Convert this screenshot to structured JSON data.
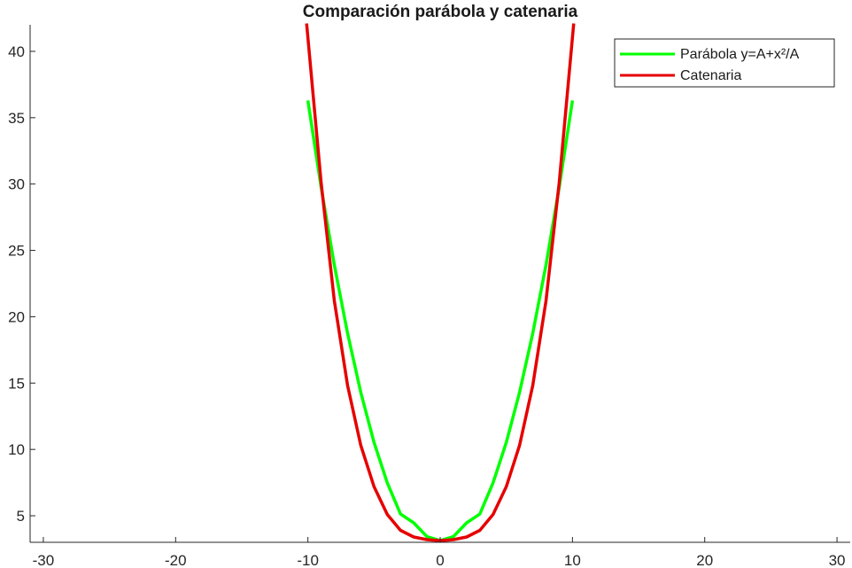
{
  "chart_data": {
    "type": "line",
    "title": "Comparación parábola y catenaria",
    "xlabel": "",
    "ylabel": "",
    "xlim": [
      -31,
      31
    ],
    "ylim": [
      3,
      42
    ],
    "xticks": [
      -30,
      -20,
      -10,
      0,
      10,
      20,
      30
    ],
    "yticks": [
      5,
      10,
      15,
      20,
      25,
      30,
      35,
      40
    ],
    "xticklabels": [
      "-30",
      "-20",
      "-10",
      "0",
      "10",
      "20",
      "30"
    ],
    "yticklabels": [
      "5",
      "10",
      "15",
      "20",
      "25",
      "30",
      "35",
      "40"
    ],
    "grid": false,
    "legend_position": "top-right",
    "series": [
      {
        "name": "Parábola  y=A+x²/A",
        "color": "#00ff00",
        "x": [
          -10,
          -9,
          -8,
          -7,
          -6,
          -5,
          -4,
          -3,
          -2,
          -1,
          0,
          1,
          2,
          3,
          4,
          5,
          6,
          7,
          8,
          9,
          10
        ],
        "values": [
          36.3,
          29.75,
          23.9,
          18.74,
          14.29,
          10.53,
          7.48,
          5.13,
          4.47,
          3.43,
          3.13,
          3.43,
          4.47,
          5.13,
          7.48,
          10.53,
          14.29,
          18.74,
          23.9,
          29.75,
          36.3
        ]
      },
      {
        "name": "Catenaria",
        "color": "#e60000",
        "x": [
          -10.1,
          -9,
          -8,
          -7,
          -6,
          -5,
          -4,
          -3,
          -2,
          -1,
          0,
          1,
          2,
          3,
          4,
          5,
          6,
          7,
          8,
          9,
          10.1
        ],
        "values": [
          42.1,
          30.1,
          21.2,
          14.8,
          10.3,
          7.2,
          5.1,
          3.9,
          3.4,
          3.2,
          3.13,
          3.2,
          3.4,
          3.9,
          5.1,
          7.2,
          10.3,
          14.8,
          21.2,
          30.1,
          42.1
        ]
      }
    ]
  }
}
